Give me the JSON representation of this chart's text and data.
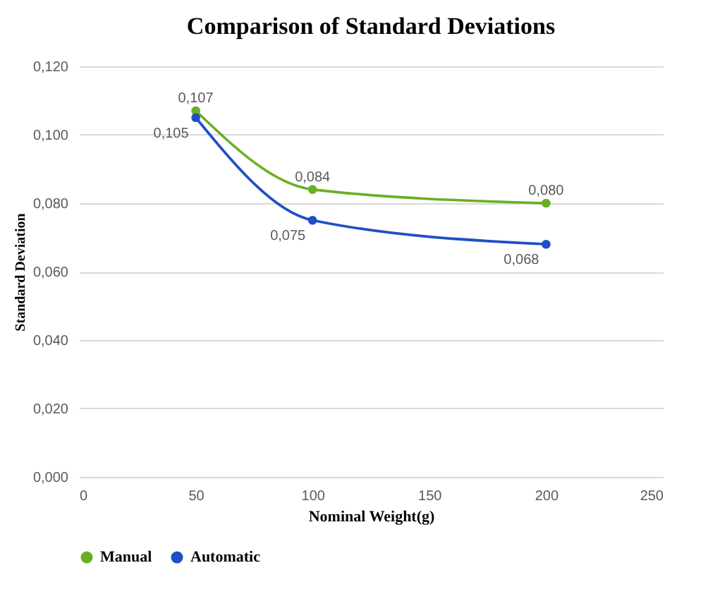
{
  "chart_data": {
    "type": "line",
    "title": "Comparison of Standard Deviations",
    "xlabel": "Nominal Weight(g)",
    "ylabel": "Standard Deviation",
    "x": [
      50,
      100,
      200
    ],
    "series": [
      {
        "name": "Manual",
        "color": "#6aaf23",
        "values": [
          0.107,
          0.084,
          0.08
        ],
        "value_labels": [
          "0,107",
          "0,084",
          "0,080"
        ]
      },
      {
        "name": "Automatic",
        "color": "#1f4fc4",
        "values": [
          0.105,
          0.075,
          0.068
        ],
        "value_labels": [
          "0,105",
          "0,075",
          "0,068"
        ]
      }
    ],
    "xlim": [
      0,
      250
    ],
    "xticks": [
      0,
      50,
      100,
      150,
      200,
      250
    ],
    "ylim": [
      0,
      0.12
    ],
    "yticks": [
      {
        "value": 0,
        "label": "0,000"
      },
      {
        "value": 0.02,
        "label": "0,020"
      },
      {
        "value": 0.04,
        "label": "0,040"
      },
      {
        "value": 0.06,
        "label": "0,060"
      },
      {
        "value": 0.08,
        "label": "0,080"
      },
      {
        "value": 0.1,
        "label": "0,100"
      },
      {
        "value": 0.12,
        "label": "0,120"
      }
    ],
    "grid": "y",
    "legend": "bottom",
    "marker": "circle",
    "line_style": "solid"
  }
}
